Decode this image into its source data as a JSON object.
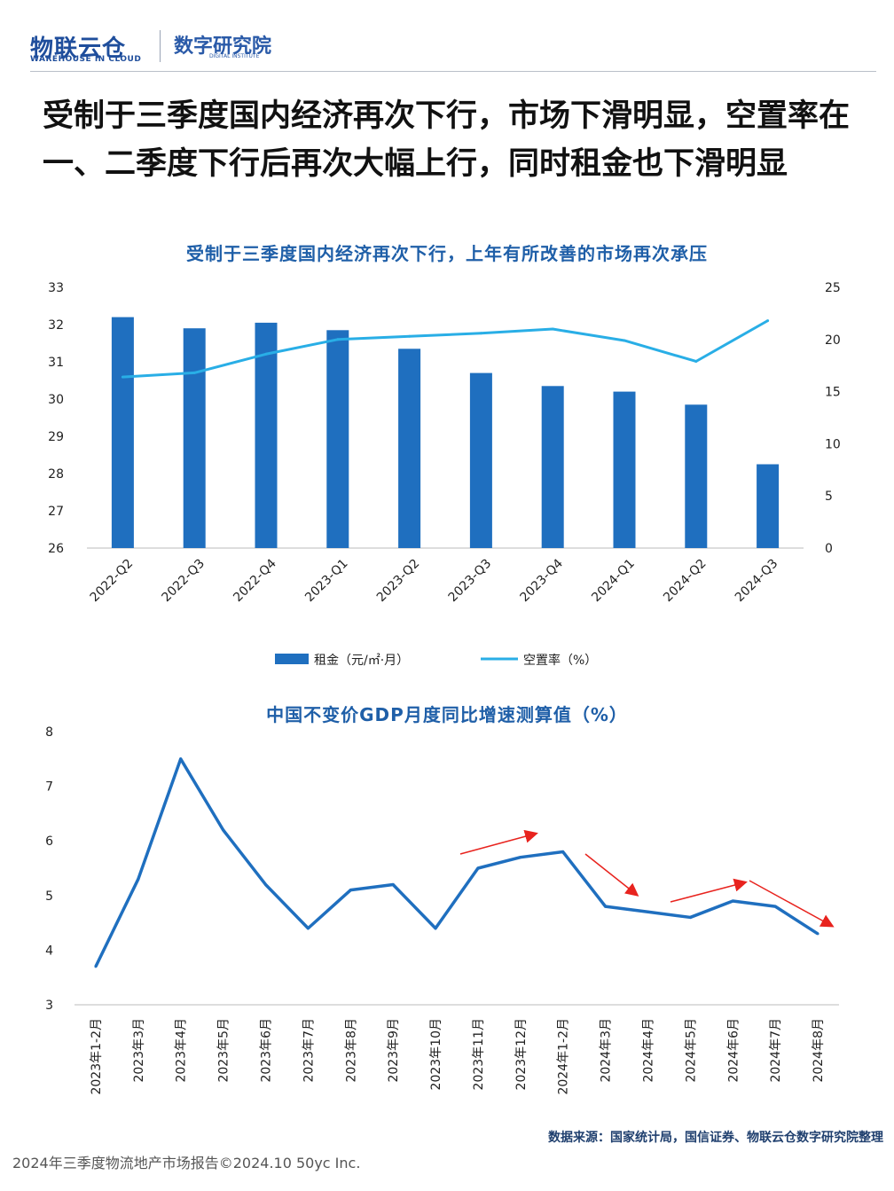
{
  "header": {
    "logo1": "物联云仓",
    "logo1_sub": "WAREHOUSE IN CLOUD",
    "logo2": "数字研究院",
    "logo2_sub": "DIGITAL INSTITUTE"
  },
  "main_title": "受制于三季度国内经济再次下行，市场下滑明显，空置率在一、二季度下行后再次大幅上行，同时租金也下滑明显",
  "colors": {
    "bar": "#1f6fbf",
    "vacancy_line": "#29aee6",
    "gdp_line": "#1f6fbf",
    "arrow": "#e8231e"
  },
  "chart_data": [
    {
      "type": "bar",
      "title": "受制于三季度国内经济再次下行，上年有所改善的市场再次承压",
      "categories": [
        "2022-Q2",
        "2022-Q3",
        "2022-Q4",
        "2023-Q1",
        "2023-Q2",
        "2023-Q3",
        "2023-Q4",
        "2024-Q1",
        "2024-Q2",
        "2024-Q3"
      ],
      "series": [
        {
          "name": "租金（元/㎡·月）",
          "type": "bar",
          "axis": "left",
          "values": [
            32.2,
            31.9,
            32.05,
            31.85,
            31.35,
            30.7,
            30.35,
            30.2,
            29.85,
            28.25
          ]
        },
        {
          "name": "空置率（%）",
          "type": "line",
          "axis": "right",
          "values": [
            16.4,
            16.8,
            18.6,
            20.0,
            20.3,
            20.6,
            21.0,
            19.9,
            17.9,
            21.8
          ]
        }
      ],
      "ylim_left": [
        26,
        33
      ],
      "yticks_left": [
        "33",
        "32",
        "31",
        "30",
        "29",
        "28",
        "27",
        "26"
      ],
      "ylim_right": [
        0,
        25
      ],
      "yticks_right": [
        "25",
        "20",
        "15",
        "10",
        "5",
        "0"
      ],
      "legend": "bottom"
    },
    {
      "type": "line",
      "title": "中国不变价GDP月度同比增速测算值（%）",
      "categories": [
        "2023年1-2月",
        "2023年3月",
        "2023年4月",
        "2023年5月",
        "2023年6月",
        "2023年7月",
        "2023年8月",
        "2023年9月",
        "2023年10月",
        "2023年11月",
        "2023年12月",
        "2024年1-2月",
        "2024年3月",
        "2024年4月",
        "2024年5月",
        "2024年6月",
        "2024年7月",
        "2024年8月"
      ],
      "values": [
        3.7,
        5.3,
        7.5,
        6.2,
        5.2,
        4.4,
        5.1,
        5.2,
        4.4,
        5.5,
        5.7,
        5.8,
        4.8,
        4.7,
        4.6,
        4.9,
        4.8,
        4.3
      ],
      "ylim": [
        3,
        8
      ],
      "yticks": [
        "8",
        "7",
        "6",
        "5",
        "4",
        "3"
      ],
      "annotations": [
        "up-arrow",
        "down-arrow",
        "up-arrow",
        "down-arrow"
      ]
    }
  ],
  "source": "数据来源：国家统计局，国信证券、物联云仓数字研究院整理",
  "footer": "2024年三季度物流地产市场报告©2024.10  50yc Inc."
}
